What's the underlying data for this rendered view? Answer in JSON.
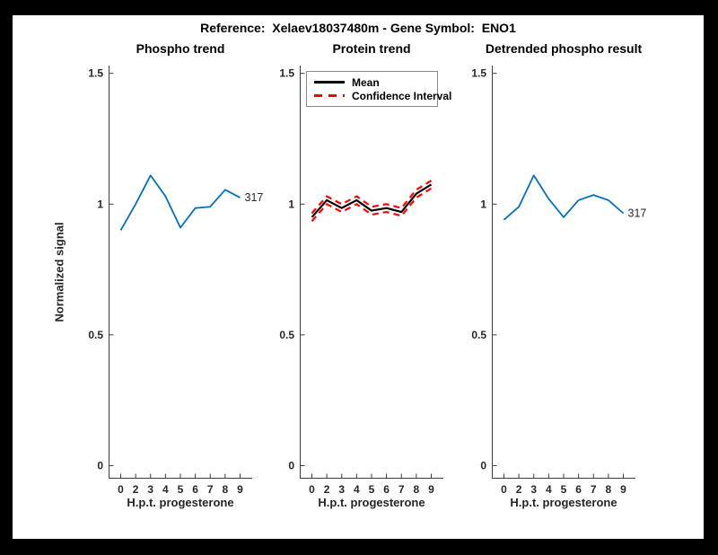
{
  "frame": {
    "background": "#000000",
    "figure_background": "#ffffff"
  },
  "figure_title": "Reference:  Xelaev18037480m - Gene Symbol:  ENO1",
  "axis_style": {
    "axis_line_color": "#3b3b3b",
    "tick_label_color": "#262626",
    "blue": "#0072BD",
    "red": "#ff0000",
    "black": "#000000"
  },
  "legend": {
    "entries": [
      {
        "label": "Mean",
        "style": "solid",
        "color": "#000000"
      },
      {
        "label": "Confidence Interval",
        "style": "dashed",
        "color": "#ff0000"
      }
    ]
  },
  "chart_data": [
    {
      "type": "line",
      "title": "Phospho trend",
      "xlabel": "H.p.t. progesterone",
      "ylabel": "Normalized signal",
      "x_tick_labels": [
        "0",
        "2",
        "3",
        "4",
        "5",
        "6",
        "7",
        "8",
        "9"
      ],
      "yticks": [
        0,
        0.5,
        1,
        1.5
      ],
      "ytick_labels": [
        "0",
        "0.5",
        "1",
        "1.5"
      ],
      "ylim": [
        -0.05,
        1.53
      ],
      "grid": false,
      "end_label": "317",
      "series": [
        {
          "name": "317",
          "color": "#0072BD",
          "style": "solid",
          "width": 1.8,
          "values": [
            0.9,
            1.0,
            1.11,
            1.03,
            0.91,
            0.985,
            0.99,
            1.055,
            1.025
          ]
        }
      ]
    },
    {
      "type": "line",
      "title": "Protein trend",
      "xlabel": "H.p.t. progesterone",
      "ylabel": "",
      "x_tick_labels": [
        "0",
        "2",
        "3",
        "4",
        "5",
        "6",
        "7",
        "8",
        "9"
      ],
      "yticks": [
        0,
        0.5,
        1,
        1.5
      ],
      "ytick_labels": [
        "0",
        "0.5",
        "1",
        "1.5"
      ],
      "ylim": [
        -0.05,
        1.53
      ],
      "grid": false,
      "legend_position": "top-left-inside",
      "series": [
        {
          "name": "Confidence Interval upper",
          "color": "#ff0000",
          "style": "dashed",
          "width": 2.2,
          "values": [
            0.965,
            1.03,
            1.0,
            1.03,
            0.99,
            1.0,
            0.985,
            1.055,
            1.09
          ]
        },
        {
          "name": "Confidence Interval lower",
          "color": "#ff0000",
          "style": "dashed",
          "width": 2.2,
          "values": [
            0.935,
            1.0,
            0.97,
            1.0,
            0.96,
            0.97,
            0.955,
            1.025,
            1.06
          ]
        },
        {
          "name": "Mean",
          "color": "#000000",
          "style": "solid",
          "width": 2.2,
          "values": [
            0.95,
            1.015,
            0.985,
            1.015,
            0.975,
            0.985,
            0.97,
            1.04,
            1.075
          ]
        }
      ]
    },
    {
      "type": "line",
      "title": "Detrended phospho result",
      "xlabel": "H.p.t. progesterone",
      "ylabel": "",
      "x_tick_labels": [
        "0",
        "2",
        "3",
        "4",
        "5",
        "6",
        "7",
        "8",
        "9"
      ],
      "yticks": [
        0,
        0.5,
        1,
        1.5
      ],
      "ytick_labels": [
        "0",
        "0.5",
        "1",
        "1.5"
      ],
      "ylim": [
        -0.05,
        1.53
      ],
      "grid": false,
      "end_label": "317",
      "series": [
        {
          "name": "317",
          "color": "#0072BD",
          "style": "solid",
          "width": 1.8,
          "values": [
            0.94,
            0.99,
            1.11,
            1.02,
            0.95,
            1.015,
            1.035,
            1.015,
            0.965
          ]
        }
      ]
    }
  ]
}
